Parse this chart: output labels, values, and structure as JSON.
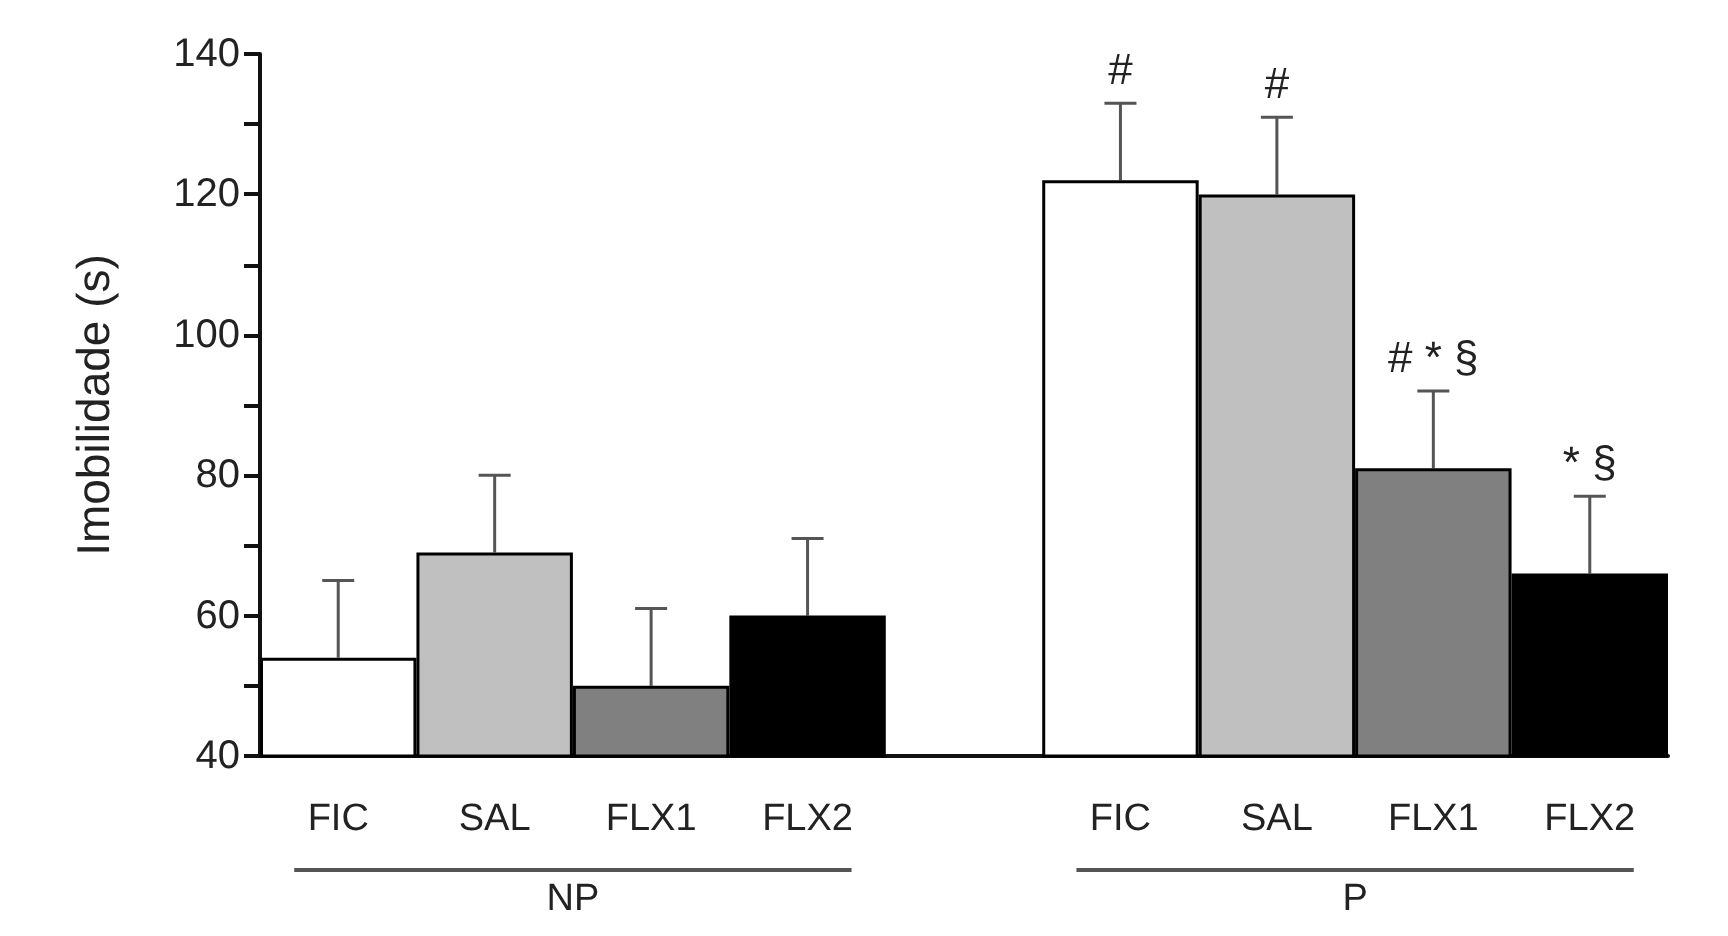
{
  "chart_data": {
    "type": "bar",
    "ylabel": "Imobilidade (s)",
    "categories": [
      "FIC",
      "SAL",
      "FLX1",
      "FLX2",
      null,
      "FIC",
      "SAL",
      "FLX1",
      "FLX2"
    ],
    "values": [
      54,
      69,
      50,
      60,
      null,
      122,
      120,
      81,
      66
    ],
    "colors": [
      "#ffffff",
      "#c0c0c0",
      "#808080",
      "#000000",
      "#ffffff",
      "#ffffff",
      "#c0c0c0",
      "#808080",
      "#000000"
    ],
    "errors": [
      [
        54,
        65
      ],
      [
        69,
        80
      ],
      [
        50,
        61
      ],
      [
        60,
        71
      ],
      null,
      [
        122,
        133
      ],
      [
        120,
        131
      ],
      [
        81,
        92
      ],
      [
        66,
        77
      ]
    ],
    "value_labels": [
      null,
      null,
      null,
      null,
      null,
      "#",
      "#",
      "# * §",
      "* §"
    ],
    "annotations": [
      "NP",
      "P"
    ],
    "ylim": [
      40,
      140
    ],
    "yticks": [
      40,
      {
        "value": 50,
        "label": null
      },
      60,
      {
        "value": 70,
        "label": null
      },
      80,
      {
        "value": 90,
        "label": null
      },
      100,
      {
        "value": 110,
        "label": null
      },
      120,
      {
        "value": 130,
        "label": null
      },
      140
    ],
    "grid": false
  }
}
